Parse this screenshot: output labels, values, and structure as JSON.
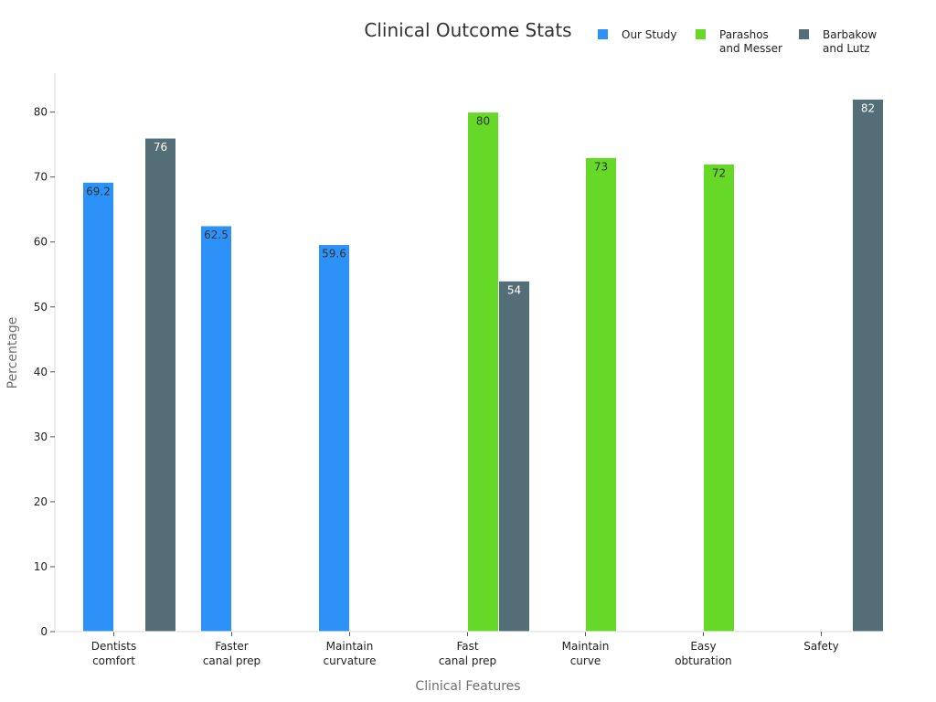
{
  "chart_data": {
    "type": "bar",
    "title": "Clinical Outcome Stats",
    "xlabel": "Clinical Features",
    "ylabel": "Percentage",
    "ylim": [
      0,
      86
    ],
    "yticks": [
      0,
      10,
      20,
      30,
      40,
      50,
      60,
      70,
      80
    ],
    "grid": false,
    "legend_position": "top-right",
    "categories": [
      [
        "Dentists",
        "comfort"
      ],
      [
        "Faster",
        "canal prep"
      ],
      [
        "Maintain",
        "curvature"
      ],
      [
        "Fast",
        "canal prep"
      ],
      [
        "Maintain",
        "curve"
      ],
      [
        "Easy",
        "obturation"
      ],
      [
        "Safety"
      ]
    ],
    "series": [
      {
        "name": [
          "Our Study"
        ],
        "color": "#2d92f7",
        "label_color": "#333333",
        "values": [
          69.2,
          62.5,
          59.6,
          null,
          null,
          null,
          null
        ]
      },
      {
        "name": [
          "Parashos",
          "and Messer"
        ],
        "color": "#66d928",
        "label_color": "#333333",
        "values": [
          null,
          null,
          null,
          80,
          73,
          72,
          null
        ]
      },
      {
        "name": [
          "Barbakow",
          "and Lutz"
        ],
        "color": "#546e78",
        "label_color": "#ffffff",
        "values": [
          76,
          null,
          null,
          54,
          null,
          null,
          82
        ]
      }
    ]
  }
}
